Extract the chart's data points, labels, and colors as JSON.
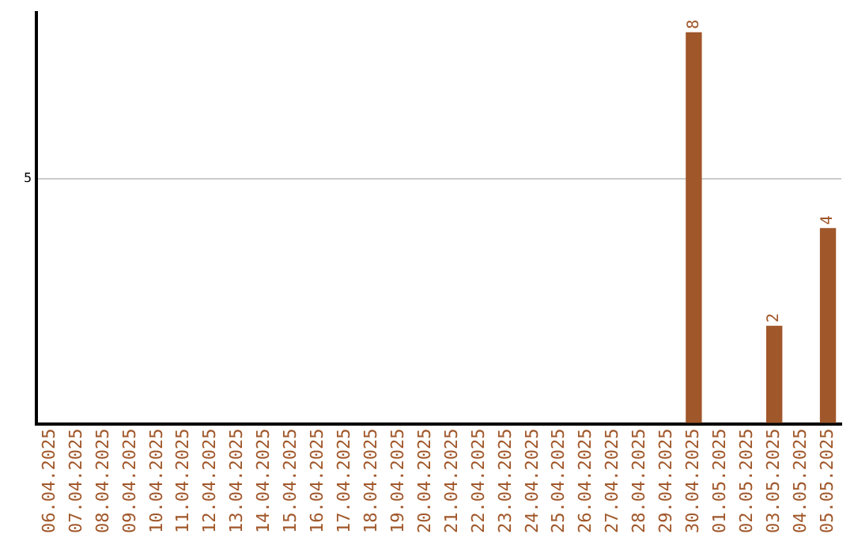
{
  "chart_data": {
    "type": "bar",
    "categories": [
      "06.04.2025",
      "07.04.2025",
      "08.04.2025",
      "09.04.2025",
      "10.04.2025",
      "11.04.2025",
      "12.04.2025",
      "13.04.2025",
      "14.04.2025",
      "15.04.2025",
      "16.04.2025",
      "17.04.2025",
      "18.04.2025",
      "19.04.2025",
      "20.04.2025",
      "21.04.2025",
      "22.04.2025",
      "23.04.2025",
      "24.04.2025",
      "25.04.2025",
      "26.04.2025",
      "27.04.2025",
      "28.04.2025",
      "29.04.2025",
      "30.04.2025",
      "01.05.2025",
      "02.05.2025",
      "03.05.2025",
      "04.05.2025",
      "05.05.2025"
    ],
    "values": [
      null,
      null,
      null,
      null,
      null,
      null,
      null,
      null,
      null,
      null,
      null,
      null,
      null,
      null,
      null,
      null,
      null,
      null,
      null,
      null,
      null,
      null,
      null,
      null,
      8,
      null,
      null,
      2,
      null,
      4
    ],
    "value_labels": [
      null,
      null,
      null,
      null,
      null,
      null,
      null,
      null,
      null,
      null,
      null,
      null,
      null,
      null,
      null,
      null,
      null,
      null,
      null,
      null,
      null,
      null,
      null,
      null,
      "8",
      null,
      null,
      "2",
      null,
      "4"
    ],
    "color": "#a0572a",
    "ylim": [
      0,
      8.4
    ],
    "yticks": [
      {
        "value": 0,
        "label": null
      },
      5
    ],
    "grid": "y",
    "legend": false
  }
}
